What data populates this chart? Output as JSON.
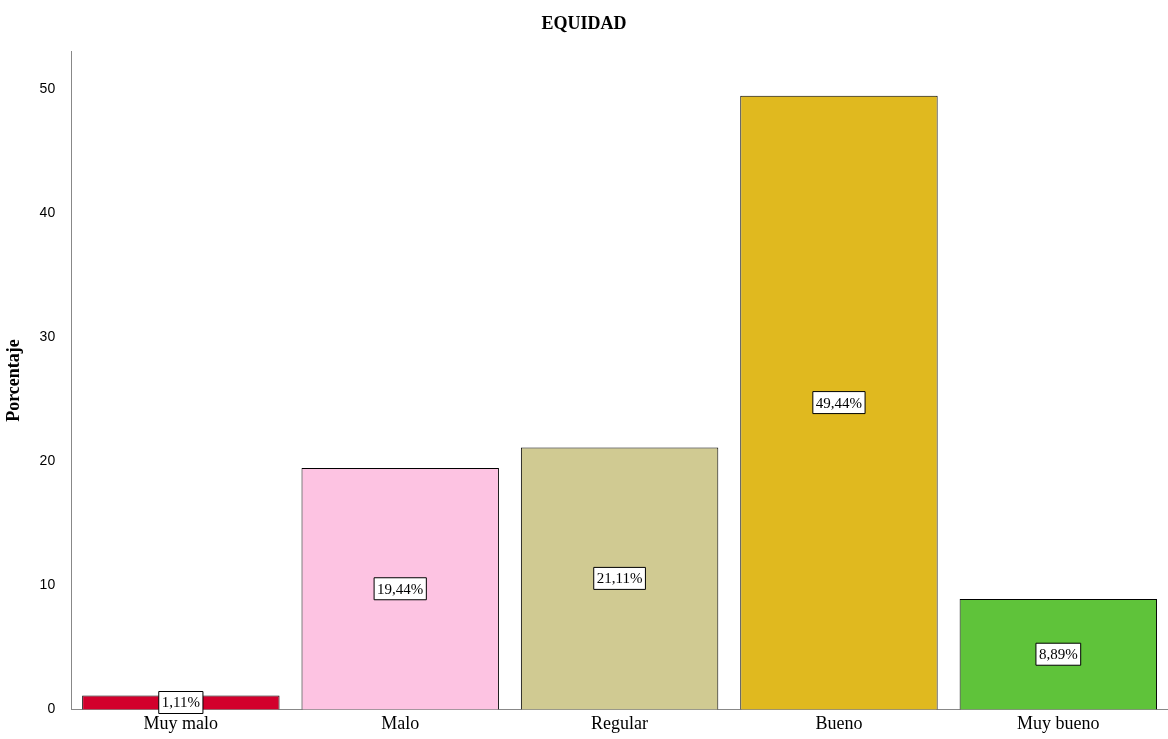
{
  "chart_data": {
    "type": "bar",
    "title": "EQUIDAD",
    "ylabel": "Porcentaje",
    "categories": [
      "Muy malo",
      "Malo",
      "Regular",
      "Bueno",
      "Muy bueno"
    ],
    "values": [
      1.11,
      19.44,
      21.11,
      49.44,
      8.89
    ],
    "colors": [
      "#d2002c",
      "#fdc3e2",
      "#d0ca92",
      "#e0b91f",
      "#5fc33a"
    ],
    "value_labels": [
      "1,11%",
      "19,44%",
      "21,11%",
      "49,44%",
      "8,89%"
    ],
    "ylim": [
      0,
      53
    ],
    "yticks": [
      0,
      10,
      20,
      30,
      40,
      50
    ],
    "grid": false,
    "legend": false
  }
}
